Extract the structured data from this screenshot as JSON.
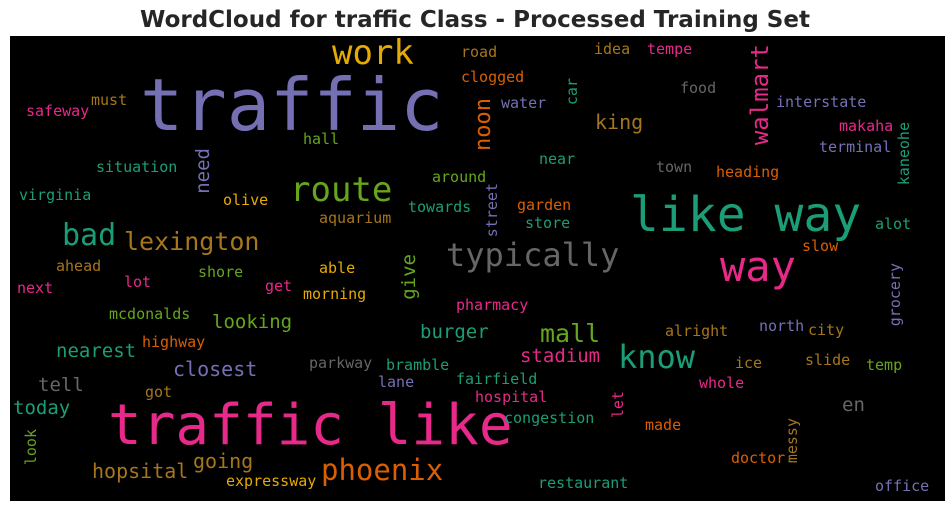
{
  "title": "WordCloud for traffic Class - Processed Training Set",
  "colors": {
    "pink": "#e7298a",
    "purple": "#7570b3",
    "teal": "#1b9e77",
    "orange": "#d95f02",
    "gold": "#e6ab02",
    "green": "#66a61e",
    "brown": "#a6761d",
    "gray": "#666666"
  },
  "words": [
    {
      "text": "traffic",
      "color": "purple"
    },
    {
      "text": "traffic like",
      "color": "pink"
    },
    {
      "text": "like way",
      "color": "teal"
    },
    {
      "text": "way",
      "color": "pink"
    },
    {
      "text": "work",
      "color": "gold"
    },
    {
      "text": "route",
      "color": "green"
    },
    {
      "text": "typically",
      "color": "gray"
    },
    {
      "text": "know",
      "color": "teal"
    },
    {
      "text": "phoenix",
      "color": "orange"
    },
    {
      "text": "bad",
      "color": "teal"
    },
    {
      "text": "lexington",
      "color": "brown"
    },
    {
      "text": "mall",
      "color": "green"
    },
    {
      "text": "walmart",
      "color": "pink"
    },
    {
      "text": "noon",
      "color": "orange"
    },
    {
      "text": "king",
      "color": "brown"
    },
    {
      "text": "closest",
      "color": "purple"
    },
    {
      "text": "going",
      "color": "brown"
    },
    {
      "text": "hopsital",
      "color": "brown"
    },
    {
      "text": "looking",
      "color": "green"
    },
    {
      "text": "nearest",
      "color": "teal"
    },
    {
      "text": "tell",
      "color": "gray"
    },
    {
      "text": "today",
      "color": "teal"
    },
    {
      "text": "burger",
      "color": "teal"
    },
    {
      "text": "stadium",
      "color": "pink"
    },
    {
      "text": "need",
      "color": "purple"
    },
    {
      "text": "give",
      "color": "green"
    },
    {
      "text": "en",
      "color": "gray"
    },
    {
      "text": "road",
      "color": "brown"
    },
    {
      "text": "clogged",
      "color": "orange"
    },
    {
      "text": "idea",
      "color": "brown"
    },
    {
      "text": "tempe",
      "color": "pink"
    },
    {
      "text": "food",
      "color": "gray"
    },
    {
      "text": "car",
      "color": "teal"
    },
    {
      "text": "water",
      "color": "purple"
    },
    {
      "text": "interstate",
      "color": "purple"
    },
    {
      "text": "safeway",
      "color": "pink"
    },
    {
      "text": "must",
      "color": "brown"
    },
    {
      "text": "hall",
      "color": "green"
    },
    {
      "text": "makaha",
      "color": "pink"
    },
    {
      "text": "kaneohe",
      "color": "teal"
    },
    {
      "text": "terminal",
      "color": "purple"
    },
    {
      "text": "situation",
      "color": "teal"
    },
    {
      "text": "near",
      "color": "teal"
    },
    {
      "text": "town",
      "color": "gray"
    },
    {
      "text": "heading",
      "color": "orange"
    },
    {
      "text": "virginia",
      "color": "teal"
    },
    {
      "text": "olive",
      "color": "gold"
    },
    {
      "text": "around",
      "color": "green"
    },
    {
      "text": "towards",
      "color": "teal"
    },
    {
      "text": "street",
      "color": "purple"
    },
    {
      "text": "garden",
      "color": "orange"
    },
    {
      "text": "store",
      "color": "teal"
    },
    {
      "text": "aquarium",
      "color": "brown"
    },
    {
      "text": "alot",
      "color": "teal"
    },
    {
      "text": "slow",
      "color": "orange"
    },
    {
      "text": "ahead",
      "color": "brown"
    },
    {
      "text": "shore",
      "color": "green"
    },
    {
      "text": "able",
      "color": "gold"
    },
    {
      "text": "lot",
      "color": "pink"
    },
    {
      "text": "next",
      "color": "pink"
    },
    {
      "text": "get",
      "color": "pink"
    },
    {
      "text": "morning",
      "color": "gold"
    },
    {
      "text": "grocery",
      "color": "purple"
    },
    {
      "text": "pharmacy",
      "color": "pink"
    },
    {
      "text": "mcdonalds",
      "color": "green"
    },
    {
      "text": "alright",
      "color": "brown"
    },
    {
      "text": "north",
      "color": "purple"
    },
    {
      "text": "city",
      "color": "brown"
    },
    {
      "text": "highway",
      "color": "orange"
    },
    {
      "text": "parkway",
      "color": "gray"
    },
    {
      "text": "bramble",
      "color": "teal"
    },
    {
      "text": "ice",
      "color": "brown"
    },
    {
      "text": "slide",
      "color": "brown"
    },
    {
      "text": "temp",
      "color": "green"
    },
    {
      "text": "lane",
      "color": "purple"
    },
    {
      "text": "fairfield",
      "color": "teal"
    },
    {
      "text": "whole",
      "color": "pink"
    },
    {
      "text": "got",
      "color": "brown"
    },
    {
      "text": "hospital",
      "color": "pink"
    },
    {
      "text": "let",
      "color": "pink"
    },
    {
      "text": "congestion",
      "color": "teal"
    },
    {
      "text": "made",
      "color": "orange"
    },
    {
      "text": "messy",
      "color": "brown"
    },
    {
      "text": "look",
      "color": "green"
    },
    {
      "text": "doctor",
      "color": "orange"
    },
    {
      "text": "expressway",
      "color": "gold"
    },
    {
      "text": "restaurant",
      "color": "teal"
    },
    {
      "text": "office",
      "color": "purple"
    }
  ]
}
